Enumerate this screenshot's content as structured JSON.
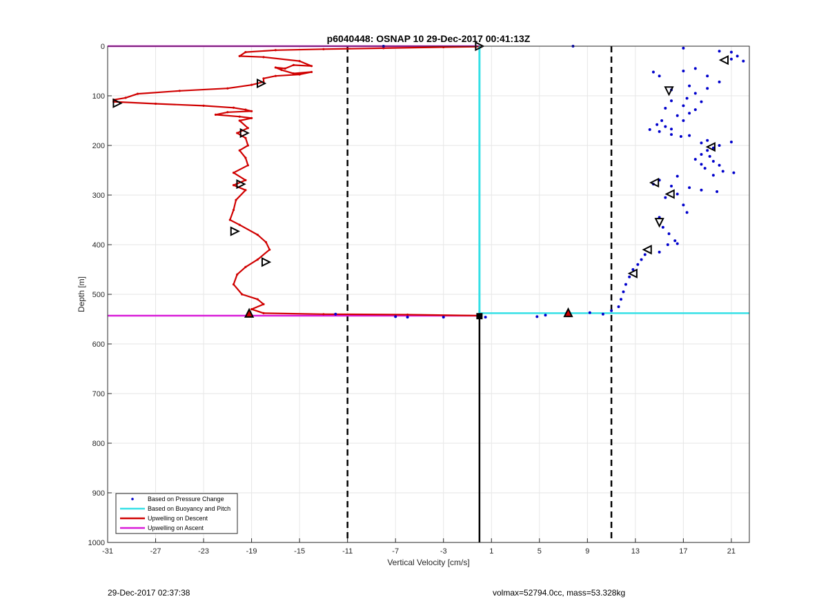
{
  "footer": {
    "timestamp": "29-Dec-2017 02:37:38",
    "params": "volmax=52794.0cc, mass=53.328kg"
  },
  "chart_data": {
    "type": "scatter",
    "title": "p6040448: OSNAP 10 29-Dec-2017 00:41:13Z",
    "xlabel": "Vertical Velocity [cm/s]",
    "ylabel": "Depth [m]",
    "xlim": [
      -31,
      22.5
    ],
    "ylim": [
      0,
      1000
    ],
    "y_reversed": true,
    "grid": true,
    "xticks": [
      -31,
      -27,
      -23,
      -19,
      -15,
      -11,
      -7,
      -3,
      1,
      5,
      9,
      13,
      17,
      21
    ],
    "yticks": [
      0,
      100,
      200,
      300,
      400,
      500,
      600,
      700,
      800,
      900,
      1000
    ],
    "legend_position": "bottom-left",
    "colors": {
      "pressure": "#0000cc",
      "buoyancy": "#33e0e6",
      "descent": "#d00000",
      "ascent": "#d81ad8"
    },
    "legend": [
      {
        "label": "Based on Pressure Change",
        "style": "dot",
        "color": "#0000cc"
      },
      {
        "label": "Based on Buoyancy and Pitch",
        "style": "line",
        "color": "#33e0e6"
      },
      {
        "label": "Upwelling on Descent",
        "style": "line",
        "color": "#d00000"
      },
      {
        "label": "Upwelling on Ascent",
        "style": "line",
        "color": "#d81ad8"
      }
    ],
    "reference_lines": {
      "dashed_x": [
        -11,
        11
      ],
      "solid_x": 0,
      "solid_x_from_depth": 545,
      "buoyancy_vertical": {
        "x": 0,
        "y": [
          0,
          538
        ]
      },
      "buoyancy_horizontal": {
        "y": 538,
        "x": [
          0,
          22.5
        ]
      },
      "ascent_top": {
        "y": 0,
        "x": [
          -31,
          0
        ]
      },
      "ascent_bottom": {
        "y": 543,
        "x": [
          -31,
          0
        ]
      }
    },
    "series": [
      {
        "name": "Upwelling on Descent",
        "type": "line",
        "points": [
          [
            0,
            1
          ],
          [
            -3,
            2
          ],
          [
            -8,
            4
          ],
          [
            -13,
            6
          ],
          [
            -17,
            8
          ],
          [
            -19.5,
            12
          ],
          [
            -20,
            20
          ],
          [
            -18,
            22
          ],
          [
            -15,
            30
          ],
          [
            -14,
            40
          ],
          [
            -15.5,
            38
          ],
          [
            -16.2,
            45
          ],
          [
            -17,
            43
          ],
          [
            -16.5,
            48
          ],
          [
            -15.5,
            55
          ],
          [
            -14,
            52
          ],
          [
            -15,
            57
          ],
          [
            -17,
            60
          ],
          [
            -18,
            65
          ],
          [
            -18,
            72
          ],
          [
            -19,
            78
          ],
          [
            -21,
            85
          ],
          [
            -25,
            90
          ],
          [
            -28.5,
            96
          ],
          [
            -29.5,
            104
          ],
          [
            -30.5,
            108
          ],
          [
            -30.5,
            112
          ],
          [
            -27,
            116
          ],
          [
            -23,
            120
          ],
          [
            -20.5,
            124
          ],
          [
            -19.5,
            128
          ],
          [
            -19,
            131
          ],
          [
            -21,
            133
          ],
          [
            -22,
            138
          ],
          [
            -20,
            142
          ],
          [
            -19,
            145
          ],
          [
            -20,
            150
          ],
          [
            -19.3,
            165
          ],
          [
            -20.2,
            175
          ],
          [
            -19.5,
            185
          ],
          [
            -19.3,
            200
          ],
          [
            -20,
            210
          ],
          [
            -19.5,
            225
          ],
          [
            -19.3,
            240
          ],
          [
            -20.5,
            255
          ],
          [
            -19.5,
            270
          ],
          [
            -20.5,
            280
          ],
          [
            -19.5,
            290
          ],
          [
            -20.3,
            310
          ],
          [
            -20.5,
            330
          ],
          [
            -20.8,
            350
          ],
          [
            -20,
            360
          ],
          [
            -18.5,
            380
          ],
          [
            -17.8,
            395
          ],
          [
            -17.5,
            410
          ],
          [
            -18.5,
            430
          ],
          [
            -19.5,
            445
          ],
          [
            -20.2,
            460
          ],
          [
            -20.5,
            480
          ],
          [
            -19.8,
            500
          ],
          [
            -18.5,
            510
          ],
          [
            -18,
            520
          ],
          [
            -19,
            530
          ],
          [
            -18,
            538
          ],
          [
            -13,
            540
          ],
          [
            -6,
            541
          ],
          [
            0,
            543
          ]
        ]
      },
      {
        "name": "Based on Pressure Change",
        "type": "scatter",
        "points": [
          [
            7.8,
            0
          ],
          [
            17,
            4
          ],
          [
            21,
            12
          ],
          [
            21.5,
            20
          ],
          [
            21,
            26
          ],
          [
            22,
            30
          ],
          [
            20,
            10
          ],
          [
            14.5,
            52
          ],
          [
            15,
            60
          ],
          [
            17,
            50
          ],
          [
            18,
            45
          ],
          [
            19,
            60
          ],
          [
            20,
            72
          ],
          [
            17.5,
            80
          ],
          [
            16,
            88
          ],
          [
            19,
            85
          ],
          [
            18,
            95
          ],
          [
            17.3,
            105
          ],
          [
            16,
            110
          ],
          [
            18.5,
            112
          ],
          [
            17,
            120
          ],
          [
            15.5,
            125
          ],
          [
            18,
            128
          ],
          [
            17.5,
            135
          ],
          [
            16.5,
            140
          ],
          [
            15.2,
            150
          ],
          [
            17,
            150
          ],
          [
            14.8,
            158
          ],
          [
            15.5,
            162
          ],
          [
            16,
            167
          ],
          [
            14.2,
            168
          ],
          [
            15,
            172
          ],
          [
            16,
            178
          ],
          [
            16.8,
            182
          ],
          [
            17.5,
            180
          ],
          [
            19,
            190
          ],
          [
            18.5,
            195
          ],
          [
            20,
            200
          ],
          [
            19.5,
            205
          ],
          [
            21,
            193
          ],
          [
            19,
            210
          ],
          [
            18.5,
            218
          ],
          [
            19.2,
            222
          ],
          [
            18,
            228
          ],
          [
            19.5,
            232
          ],
          [
            18.5,
            238
          ],
          [
            20,
            240
          ],
          [
            18.8,
            246
          ],
          [
            20.3,
            252
          ],
          [
            21.2,
            255
          ],
          [
            19.5,
            260
          ],
          [
            16.5,
            262
          ],
          [
            15,
            270
          ],
          [
            14.5,
            278
          ],
          [
            16,
            282
          ],
          [
            17.5,
            285
          ],
          [
            18.5,
            290
          ],
          [
            19.8,
            293
          ],
          [
            16.5,
            298
          ],
          [
            15.5,
            305
          ],
          [
            17,
            320
          ],
          [
            17.3,
            335
          ],
          [
            15,
            345
          ],
          [
            15.3,
            365
          ],
          [
            15.8,
            378
          ],
          [
            16.3,
            392
          ],
          [
            16.5,
            398
          ],
          [
            15.7,
            400
          ],
          [
            15,
            415
          ],
          [
            13.8,
            420
          ],
          [
            13.5,
            430
          ],
          [
            13.2,
            440
          ],
          [
            12.8,
            450
          ],
          [
            12.5,
            465
          ],
          [
            12.2,
            480
          ],
          [
            12,
            495
          ],
          [
            11.8,
            510
          ],
          [
            11.6,
            525
          ],
          [
            11,
            533
          ],
          [
            10.3,
            540
          ],
          [
            9.2,
            537
          ],
          [
            7.3,
            541
          ],
          [
            5.5,
            542
          ],
          [
            4.8,
            545
          ],
          [
            0.5,
            546
          ],
          [
            -3,
            546
          ],
          [
            -6,
            546
          ],
          [
            -7,
            545
          ],
          [
            -8,
            0
          ],
          [
            -12,
            540
          ]
        ]
      }
    ],
    "markers": [
      {
        "x": 0,
        "y": 0,
        "shape": "triangle-right"
      },
      {
        "x": -18.2,
        "y": 75,
        "shape": "triangle-right"
      },
      {
        "x": -30.2,
        "y": 115,
        "shape": "triangle-right"
      },
      {
        "x": -19.6,
        "y": 175,
        "shape": "triangle-right"
      },
      {
        "x": -19.9,
        "y": 278,
        "shape": "triangle-right"
      },
      {
        "x": -20.4,
        "y": 373,
        "shape": "triangle-right"
      },
      {
        "x": -17.8,
        "y": 435,
        "shape": "triangle-right"
      },
      {
        "x": 20.4,
        "y": 28,
        "shape": "triangle-left"
      },
      {
        "x": 15.8,
        "y": 90,
        "shape": "triangle-down"
      },
      {
        "x": 19.3,
        "y": 203,
        "shape": "triangle-left"
      },
      {
        "x": 14.6,
        "y": 275,
        "shape": "triangle-left"
      },
      {
        "x": 15.9,
        "y": 298,
        "shape": "triangle-left"
      },
      {
        "x": 15,
        "y": 355,
        "shape": "triangle-down"
      },
      {
        "x": 14,
        "y": 410,
        "shape": "triangle-left"
      },
      {
        "x": 12.8,
        "y": 458,
        "shape": "triangle-left"
      },
      {
        "x": -19.2,
        "y": 538,
        "shape": "triangle-up-red"
      },
      {
        "x": 7.4,
        "y": 537,
        "shape": "triangle-up-red"
      },
      {
        "x": 0,
        "y": 544,
        "shape": "square"
      }
    ]
  }
}
